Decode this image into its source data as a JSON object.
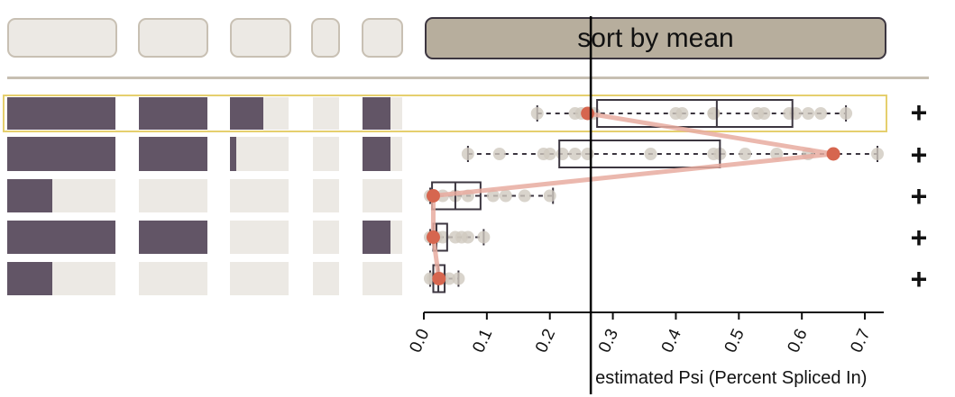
{
  "header": {
    "sort_button_label": "sort by mean"
  },
  "colors": {
    "exon": "#625566",
    "intron_bg": "#ece9e4",
    "header_box": "#ece9e4",
    "header_border": "#c8c0b3",
    "sort_button": "#b7ae9d",
    "sample_point": "#cfc9bf",
    "mean_point": "#d6664f",
    "mean_line": "#e8aca0",
    "highlight": "#e5cf6e"
  },
  "plus_label": "+",
  "chart_data": {
    "type": "box-scatter",
    "xlabel": "estimated Psi (Percent Spliced In)",
    "xlim": [
      0,
      0.73
    ],
    "xticks": [
      "0.0",
      "0.1",
      "0.2",
      "0.3",
      "0.4",
      "0.5",
      "0.6",
      "0.7"
    ],
    "reference_line": 0.265,
    "highlighted_row": 0,
    "isoforms": [
      {
        "exon_pattern": [
          true,
          true,
          true,
          true,
          true,
          false,
          true
        ],
        "min": 0.18,
        "q1": 0.275,
        "median": 0.465,
        "q3": 0.585,
        "max": 0.67,
        "mean": 0.26,
        "samples": [
          0.18,
          0.24,
          0.25,
          0.27,
          0.4,
          0.41,
          0.46,
          0.46,
          0.53,
          0.54,
          0.58,
          0.59,
          0.61,
          0.63,
          0.67
        ]
      },
      {
        "exon_pattern": [
          true,
          true,
          true,
          true,
          false,
          false,
          true
        ],
        "min": 0.07,
        "q1": 0.215,
        "median": 0.265,
        "q3": 0.47,
        "max": 0.72,
        "mean": 0.65,
        "samples": [
          0.07,
          0.12,
          0.19,
          0.2,
          0.22,
          0.24,
          0.26,
          0.36,
          0.46,
          0.47,
          0.51,
          0.56,
          0.61,
          0.72
        ]
      },
      {
        "exon_pattern": [
          true,
          false,
          false,
          false,
          false,
          false,
          false
        ],
        "min": 0.01,
        "q1": 0.013,
        "median": 0.05,
        "q3": 0.09,
        "max": 0.205,
        "mean": 0.015,
        "samples": [
          0.01,
          0.03,
          0.05,
          0.07,
          0.11,
          0.13,
          0.16,
          0.2
        ]
      },
      {
        "exon_pattern": [
          true,
          true,
          true,
          false,
          false,
          false,
          true
        ],
        "min": 0.01,
        "q1": 0.015,
        "median": 0.02,
        "q3": 0.037,
        "max": 0.095,
        "mean": 0.015,
        "samples": [
          0.01,
          0.02,
          0.03,
          0.05,
          0.06,
          0.07,
          0.095
        ]
      },
      {
        "exon_pattern": [
          true,
          false,
          false,
          false,
          false,
          false,
          false
        ],
        "min": 0.01,
        "q1": 0.015,
        "median": 0.023,
        "q3": 0.033,
        "max": 0.055,
        "mean": 0.024,
        "samples": [
          0.01,
          0.015,
          0.02,
          0.025,
          0.03,
          0.04,
          0.055
        ]
      }
    ]
  }
}
